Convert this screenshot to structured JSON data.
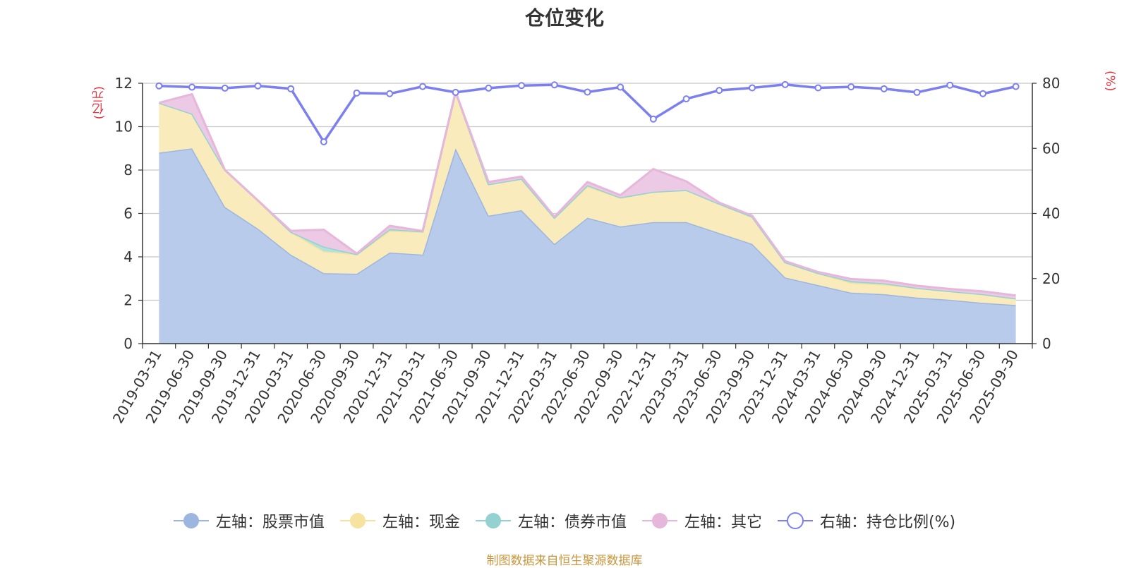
{
  "title": "仓位变化",
  "left_unit": "(亿元)",
  "right_unit": "(%)",
  "source": "制图数据来自恒生聚源数据库",
  "chart_data": {
    "type": "area",
    "categories": [
      "2019-03-31",
      "2019-06-30",
      "2019-09-30",
      "2019-12-31",
      "2020-03-31",
      "2020-06-30",
      "2020-09-30",
      "2020-12-31",
      "2021-03-31",
      "2021-06-30",
      "2021-09-30",
      "2021-12-31",
      "2022-03-31",
      "2022-06-30",
      "2022-09-30",
      "2022-12-31",
      "2023-03-31",
      "2023-06-30",
      "2023-09-30",
      "2023-12-31",
      "2024-03-31",
      "2024-06-30",
      "2024-09-30",
      "2024-12-31",
      "2025-03-31",
      "2025-06-30",
      "2025-09-30"
    ],
    "yaxis_left": {
      "min": 0,
      "max": 12,
      "ticks": [
        "0",
        "2",
        "4",
        "6",
        "8",
        "10",
        "12"
      ]
    },
    "yaxis_right": {
      "min": 0,
      "max": 80,
      "ticks": [
        "0",
        "20",
        "40",
        "60",
        "80"
      ]
    },
    "grid": true,
    "legend_position": "bottom",
    "series": [
      {
        "name": "左轴：股票市值",
        "axis": "left",
        "color": "#9db6e0",
        "fill": "#b8cbea",
        "values": [
          8.8,
          9.0,
          6.3,
          5.3,
          4.1,
          3.25,
          3.22,
          4.2,
          4.1,
          9.0,
          5.9,
          6.15,
          4.6,
          5.8,
          5.4,
          5.6,
          5.6,
          5.1,
          4.6,
          3.05,
          2.7,
          2.35,
          2.28,
          2.12,
          2.02,
          1.88,
          1.78
        ]
      },
      {
        "name": "左轴：现金",
        "axis": "left",
        "color": "#f6e3a0",
        "fill": "#f9ebbb",
        "values": [
          2.3,
          1.6,
          1.7,
          1.3,
          1.05,
          1.0,
          0.9,
          1.0,
          1.05,
          2.6,
          1.45,
          1.45,
          1.2,
          1.45,
          1.32,
          1.4,
          1.48,
          1.35,
          1.25,
          0.7,
          0.55,
          0.45,
          0.45,
          0.45,
          0.4,
          0.4,
          0.3
        ]
      },
      {
        "name": "左轴：债券市值",
        "axis": "left",
        "color": "#93d2d0",
        "fill": "#b5e1dd",
        "values": [
          0,
          0,
          0,
          0,
          0,
          0.22,
          0,
          0.08,
          0.02,
          0,
          0,
          0,
          0,
          0.05,
          0.02,
          0,
          0,
          0,
          0,
          0,
          0,
          0.08,
          0.05,
          0,
          0,
          0,
          0
        ]
      },
      {
        "name": "左轴：其它",
        "axis": "left",
        "color": "#e6b7da",
        "fill": "#ecc9e4",
        "values": [
          0,
          0.9,
          0,
          0,
          0.05,
          0.78,
          0.03,
          0.15,
          0.02,
          0,
          0.1,
          0.1,
          0.05,
          0.15,
          0.1,
          1.05,
          0.4,
          0.05,
          0.05,
          0.05,
          0.05,
          0.1,
          0.12,
          0.1,
          0.1,
          0.13,
          0.14
        ]
      },
      {
        "name": "右轴：持仓比例(%)",
        "axis": "right",
        "color": "#7b7ff0",
        "values": [
          79.2,
          78.8,
          78.5,
          79.2,
          78.3,
          62.0,
          77.0,
          76.8,
          79.0,
          77.2,
          78.5,
          79.3,
          79.5,
          77.3,
          78.8,
          69.0,
          75.2,
          77.8,
          78.6,
          79.6,
          78.6,
          78.9,
          78.3,
          77.2,
          79.4,
          76.8,
          79.0
        ]
      }
    ]
  }
}
